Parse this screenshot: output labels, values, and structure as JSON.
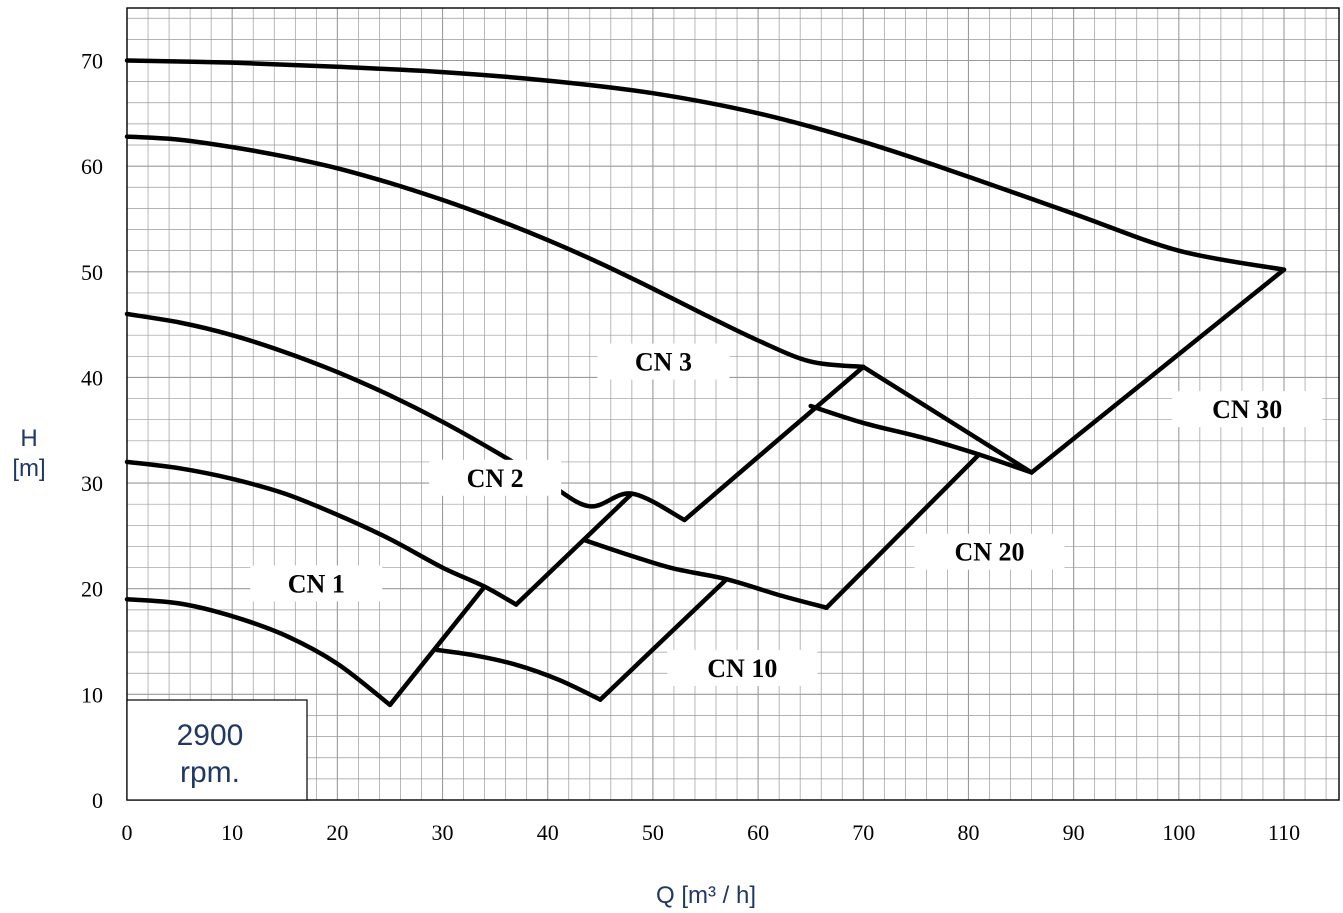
{
  "chart_data": {
    "type": "line",
    "title": "",
    "xlabel": "Q [m³ / h]",
    "ylabel": "H [m]",
    "ylabel_lines": [
      "H",
      "[m]"
    ],
    "xlim": [
      0,
      115
    ],
    "ylim": [
      0,
      75
    ],
    "x_ticks": [
      0,
      10,
      20,
      30,
      40,
      50,
      60,
      70,
      80,
      90,
      100,
      110
    ],
    "y_ticks": [
      0,
      10,
      20,
      30,
      40,
      50,
      60,
      70
    ],
    "grid": true,
    "grid_minor_step": {
      "x": 2,
      "y": 2
    },
    "speed_note": [
      "2900",
      "rpm."
    ],
    "series": [
      {
        "name": "CN 1",
        "label_pos": [
          18,
          20.5
        ],
        "curve": [
          [
            0,
            19
          ],
          [
            5,
            18.6
          ],
          [
            10,
            17.4
          ],
          [
            15,
            15.6
          ],
          [
            20,
            12.9
          ],
          [
            25,
            9
          ]
        ],
        "boundary": []
      },
      {
        "name": "CN 2",
        "label_pos": [
          35,
          30.5
        ],
        "curve": [
          [
            0,
            32
          ],
          [
            5,
            31.4
          ],
          [
            10,
            30.4
          ],
          [
            15,
            29
          ],
          [
            20,
            27
          ],
          [
            25,
            24.7
          ],
          [
            30,
            22
          ],
          [
            34,
            20.2
          ],
          [
            37,
            18.5
          ]
        ],
        "boundary": [
          [
            [
              25,
              9
            ],
            [
              34,
              20.2
            ]
          ]
        ]
      },
      {
        "name": "CN 3",
        "label_pos": [
          51,
          41.5
        ],
        "curve": [
          [
            0,
            46
          ],
          [
            5,
            45.2
          ],
          [
            10,
            44
          ],
          [
            15,
            42.4
          ],
          [
            20,
            40.5
          ],
          [
            25,
            38.3
          ],
          [
            30,
            35.8
          ],
          [
            35,
            33
          ],
          [
            40,
            30
          ],
          [
            45,
            27.1
          ],
          [
            48,
            28.8
          ],
          [
            53,
            26.5
          ]
        ],
        "curve_smooth": [
          [
            0,
            46
          ],
          [
            5,
            45.2
          ],
          [
            10,
            44
          ],
          [
            15,
            42.4
          ],
          [
            20,
            40.5
          ],
          [
            25,
            38.3
          ],
          [
            30,
            35.8
          ],
          [
            35,
            33
          ],
          [
            40,
            30
          ],
          [
            44,
            27.8
          ],
          [
            48,
            29
          ],
          [
            53,
            26.5
          ]
        ],
        "boundary": [
          [
            [
              37,
              18.5
            ],
            [
              48,
              29
            ]
          ]
        ]
      },
      {
        "name": "CN 10",
        "label_pos": [
          58.5,
          12.5
        ],
        "curve": [
          [
            29.5,
            14.2
          ],
          [
            33,
            13.7
          ],
          [
            37,
            12.8
          ],
          [
            41,
            11.4
          ],
          [
            45,
            9.5
          ]
        ],
        "boundary": [
          [
            [
              45,
              9.5
            ],
            [
              57,
              20.9
            ]
          ]
        ]
      },
      {
        "name": "CN 20",
        "label_pos": [
          82,
          23.5
        ],
        "curve": [
          [
            43.5,
            24.6
          ],
          [
            48,
            23.1
          ],
          [
            52,
            21.9
          ],
          [
            57,
            20.9
          ],
          [
            62,
            19.4
          ],
          [
            66.5,
            18.2
          ]
        ],
        "boundary": [
          [
            [
              66.5,
              18.2
            ],
            [
              81,
              32.7
            ]
          ]
        ]
      },
      {
        "name": "CN 30",
        "label_pos": [
          106.5,
          37
        ],
        "curve": [
          [
            65,
            37.3
          ],
          [
            70,
            35.7
          ],
          [
            76,
            34.2
          ],
          [
            81,
            32.7
          ],
          [
            86,
            31
          ]
        ],
        "boundary": [
          [
            [
              86,
              31
            ],
            [
              110,
              50.2
            ]
          ]
        ]
      },
      {
        "name": "CN 3",
        "label_pos": [
          51,
          41.5
        ],
        "curve": [
          [
            0,
            62.8
          ],
          [
            5,
            62.5
          ],
          [
            10,
            61.8
          ],
          [
            15,
            60.9
          ],
          [
            20,
            59.8
          ],
          [
            25,
            58.4
          ],
          [
            30,
            56.8
          ],
          [
            35,
            55
          ],
          [
            40,
            53
          ],
          [
            45,
            50.8
          ],
          [
            50,
            48.4
          ],
          [
            55,
            45.9
          ],
          [
            60,
            43.5
          ],
          [
            65,
            41.5
          ],
          [
            70,
            41
          ]
        ],
        "boundary": [
          [
            [
              53,
              26.5
            ],
            [
              70,
              41
            ]
          ]
        ]
      },
      {
        "name": "CN 30",
        "label_pos": [
          106.5,
          37
        ],
        "curve": [
          [
            0,
            70
          ],
          [
            10,
            69.8
          ],
          [
            20,
            69.4
          ],
          [
            30,
            68.9
          ],
          [
            40,
            68.1
          ],
          [
            50,
            66.9
          ],
          [
            60,
            65
          ],
          [
            70,
            62.3
          ],
          [
            80,
            59
          ],
          [
            90,
            55.5
          ],
          [
            100,
            52
          ],
          [
            110,
            50.2
          ]
        ],
        "boundary": [
          [
            [
              70,
              41
            ],
            [
              86,
              31
            ]
          ]
        ]
      }
    ]
  },
  "colors": {
    "grid": "#9a9a9a",
    "curve": "#000000",
    "axis_title": "#1f3864",
    "label_bg": "#ffffff"
  }
}
